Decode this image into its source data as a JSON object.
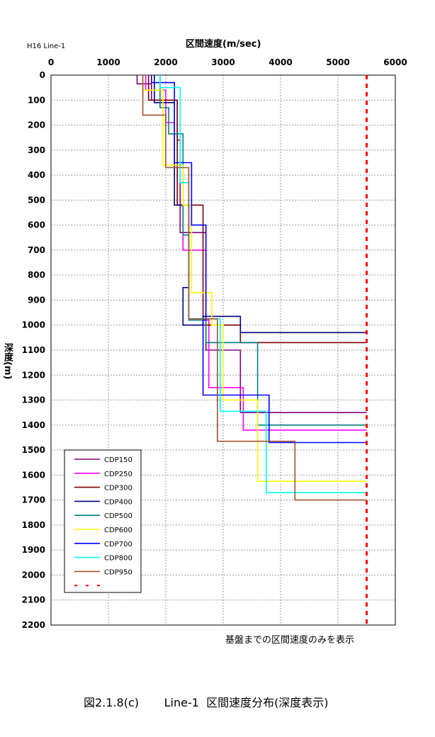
{
  "header": {
    "corner_label": "H16  Line-1"
  },
  "note": "基盤までの区間速度のみを表示",
  "caption": "図2.1.8(c)       Line-1  区間速度分布(深度表示)",
  "chart_data": {
    "type": "line",
    "title": "区間速度(m/sec)",
    "xlabel": "区間速度(m/sec)",
    "ylabel": "深度(m)",
    "xlim": [
      0,
      6000
    ],
    "ylim": [
      0,
      2200
    ],
    "y_inverted": true,
    "x_axis_position": "top",
    "grid": true,
    "xticks": [
      0,
      1000,
      2000,
      3000,
      4000,
      5000,
      6000
    ],
    "yticks": [
      0,
      100,
      200,
      300,
      400,
      500,
      600,
      700,
      800,
      900,
      1000,
      1100,
      1200,
      1300,
      1400,
      1500,
      1600,
      1700,
      1800,
      1900,
      2000,
      2100,
      2200
    ],
    "legend_position": "bottom-left",
    "series": [
      {
        "name": "CDP150",
        "color": "#800080",
        "x": [
          1500,
          1500,
          1750,
          1750,
          2200,
          2200,
          2250,
          2250,
          2700,
          2700,
          2700,
          2700,
          3300,
          3300,
          5500
        ],
        "y": [
          0,
          35,
          35,
          100,
          100,
          260,
          260,
          630,
          630,
          980,
          980,
          1100,
          1100,
          1350,
          1350
        ]
      },
      {
        "name": "CDP250",
        "color": "#ff00ff",
        "x": [
          1650,
          1650,
          2000,
          2000,
          2150,
          2150,
          2300,
          2300,
          2700,
          2700,
          2750,
          2750,
          3350,
          3350,
          5500
        ],
        "y": [
          0,
          60,
          60,
          190,
          190,
          360,
          360,
          700,
          700,
          980,
          980,
          1250,
          1250,
          1420,
          1420
        ]
      },
      {
        "name": "CDP300",
        "color": "#800000",
        "x": [
          1700,
          1700,
          2200,
          2200,
          2650,
          2650,
          2650,
          2650,
          3300,
          3300,
          5500
        ],
        "y": [
          0,
          100,
          100,
          520,
          520,
          1000,
          1000,
          1000,
          1000,
          1070,
          1070
        ]
      },
      {
        "name": "CDP400",
        "color": "#000080",
        "x": [
          1800,
          1800,
          2150,
          2150,
          2400,
          2400,
          2300,
          2300,
          2650,
          2650,
          3300,
          3300,
          5500
        ],
        "y": [
          0,
          110,
          110,
          520,
          520,
          850,
          850,
          1000,
          1000,
          965,
          965,
          1030,
          1030
        ]
      },
      {
        "name": "CDP500",
        "color": "#008080",
        "x": [
          1900,
          1900,
          2050,
          2050,
          2300,
          2300,
          2400,
          2400,
          2700,
          2700,
          3600,
          3600,
          5500
        ],
        "y": [
          0,
          130,
          130,
          235,
          235,
          640,
          640,
          980,
          980,
          1070,
          1070,
          1400,
          1400
        ]
      },
      {
        "name": "CDP600",
        "color": "#ffff00",
        "x": [
          1600,
          1600,
          1950,
          1950,
          2300,
          2300,
          2450,
          2450,
          2800,
          2800,
          3000,
          3000,
          3600,
          3600,
          5500
        ],
        "y": [
          0,
          60,
          60,
          360,
          360,
          520,
          520,
          870,
          870,
          1000,
          1000,
          1300,
          1300,
          1625,
          1625
        ]
      },
      {
        "name": "CDP700",
        "color": "#0000ff",
        "x": [
          1750,
          1750,
          2150,
          2150,
          2450,
          2450,
          2700,
          2700,
          2650,
          2650,
          3800,
          3800,
          5500
        ],
        "y": [
          0,
          30,
          30,
          350,
          350,
          600,
          600,
          980,
          980,
          1280,
          1280,
          1470,
          1470
        ]
      },
      {
        "name": "CDP800",
        "color": "#00ffff",
        "x": [
          1900,
          1900,
          2250,
          2250,
          2400,
          2400,
          2950,
          2950,
          3750,
          3750,
          5500
        ],
        "y": [
          0,
          50,
          50,
          430,
          430,
          975,
          975,
          1345,
          1345,
          1670,
          1670
        ]
      },
      {
        "name": "CDP950",
        "color": "#a0522d",
        "x": [
          1600,
          1600,
          2000,
          2000,
          2400,
          2400,
          2900,
          2900,
          4250,
          4250,
          5500
        ],
        "y": [
          0,
          160,
          160,
          370,
          370,
          975,
          975,
          1465,
          1465,
          1700,
          1700
        ]
      },
      {
        "name": "",
        "color": "#ff0000",
        "dashed": true,
        "x": [
          5500,
          5500
        ],
        "y": [
          0,
          2200
        ]
      }
    ]
  }
}
